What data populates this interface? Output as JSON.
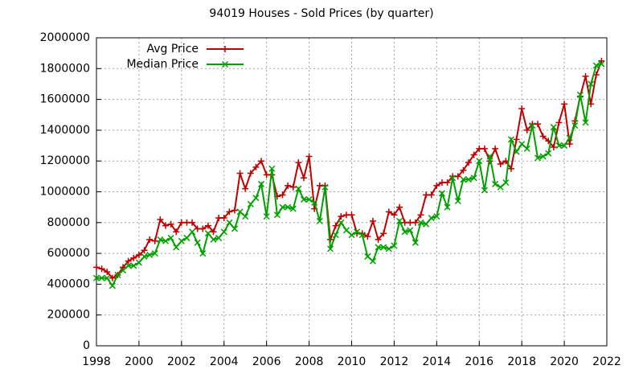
{
  "chart_data": {
    "type": "line",
    "title": "94019 Houses - Sold Prices (by quarter)",
    "x": [
      1998,
      1998.25,
      1998.5,
      1998.75,
      1999,
      1999.25,
      1999.5,
      1999.75,
      2000,
      2000.25,
      2000.5,
      2000.75,
      2001,
      2001.25,
      2001.5,
      2001.75,
      2002,
      2002.25,
      2002.5,
      2002.75,
      2003,
      2003.25,
      2003.5,
      2003.75,
      2004,
      2004.25,
      2004.5,
      2004.75,
      2005,
      2005.25,
      2005.5,
      2005.75,
      2006,
      2006.25,
      2006.5,
      2006.75,
      2007,
      2007.25,
      2007.5,
      2007.75,
      2008,
      2008.25,
      2008.5,
      2008.75,
      2009,
      2009.25,
      2009.5,
      2009.75,
      2010,
      2010.25,
      2010.5,
      2010.75,
      2011,
      2011.25,
      2011.5,
      2011.75,
      2012,
      2012.25,
      2012.5,
      2012.75,
      2013,
      2013.25,
      2013.5,
      2013.75,
      2014,
      2014.25,
      2014.5,
      2014.75,
      2015,
      2015.25,
      2015.5,
      2015.75,
      2016,
      2016.25,
      2016.5,
      2016.75,
      2017,
      2017.25,
      2017.5,
      2017.75,
      2018,
      2018.25,
      2018.5,
      2018.75,
      2019,
      2019.25,
      2019.5,
      2019.75,
      2020,
      2020.25,
      2020.5,
      2020.75,
      2021,
      2021.25,
      2021.5,
      2021.75
    ],
    "series": [
      {
        "name": "Avg Price",
        "color": "#c00000",
        "marker": "plus",
        "values": [
          510000,
          500000,
          480000,
          440000,
          460000,
          510000,
          550000,
          570000,
          590000,
          620000,
          690000,
          680000,
          820000,
          780000,
          790000,
          740000,
          800000,
          800000,
          800000,
          760000,
          760000,
          780000,
          740000,
          830000,
          830000,
          870000,
          880000,
          1120000,
          1020000,
          1120000,
          1160000,
          1200000,
          1110000,
          1110000,
          970000,
          980000,
          1040000,
          1030000,
          1190000,
          1090000,
          1230000,
          890000,
          1040000,
          1040000,
          690000,
          780000,
          840000,
          850000,
          850000,
          730000,
          730000,
          710000,
          810000,
          690000,
          730000,
          870000,
          850000,
          900000,
          800000,
          800000,
          800000,
          850000,
          980000,
          980000,
          1040000,
          1060000,
          1060000,
          1100000,
          1100000,
          1140000,
          1190000,
          1240000,
          1280000,
          1280000,
          1200000,
          1280000,
          1180000,
          1200000,
          1150000,
          1340000,
          1540000,
          1400000,
          1440000,
          1440000,
          1360000,
          1330000,
          1290000,
          1450000,
          1570000,
          1310000,
          1460000,
          1620000,
          1750000,
          1570000,
          1760000,
          1850000
        ]
      },
      {
        "name": "Median Price",
        "color": "#00a000",
        "marker": "cross",
        "values": [
          440000,
          440000,
          440000,
          390000,
          460000,
          490000,
          520000,
          520000,
          540000,
          580000,
          590000,
          600000,
          690000,
          680000,
          700000,
          640000,
          680000,
          700000,
          740000,
          670000,
          600000,
          730000,
          690000,
          700000,
          740000,
          800000,
          760000,
          870000,
          840000,
          920000,
          960000,
          1050000,
          840000,
          1150000,
          850000,
          900000,
          900000,
          890000,
          1020000,
          950000,
          950000,
          930000,
          810000,
          1030000,
          630000,
          720000,
          800000,
          750000,
          720000,
          740000,
          720000,
          580000,
          550000,
          640000,
          640000,
          630000,
          650000,
          810000,
          740000,
          750000,
          670000,
          800000,
          790000,
          830000,
          840000,
          990000,
          900000,
          1090000,
          940000,
          1080000,
          1080000,
          1090000,
          1200000,
          1010000,
          1230000,
          1050000,
          1030000,
          1060000,
          1340000,
          1260000,
          1310000,
          1280000,
          1430000,
          1220000,
          1230000,
          1250000,
          1420000,
          1300000,
          1300000,
          1350000,
          1430000,
          1630000,
          1450000,
          1700000,
          1820000,
          1830000
        ]
      }
    ],
    "xlim": [
      1998,
      2022
    ],
    "xticks": [
      1998,
      2000,
      2002,
      2004,
      2006,
      2008,
      2010,
      2012,
      2014,
      2016,
      2018,
      2020,
      2022
    ],
    "ylim": [
      0,
      2000000
    ],
    "yticks": [
      0,
      200000,
      400000,
      600000,
      800000,
      1000000,
      1200000,
      1400000,
      1600000,
      1800000,
      2000000
    ],
    "grid": true,
    "legend": "top-left"
  }
}
